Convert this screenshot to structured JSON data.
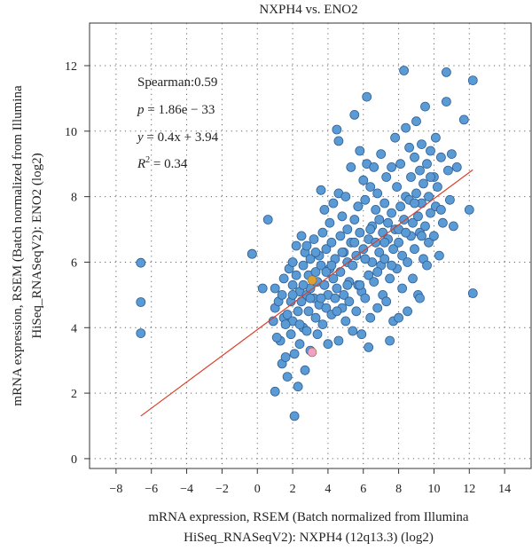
{
  "chart_data": {
    "type": "scatter",
    "title": "NXPH4 vs. ENO2",
    "xlabel_lines": [
      "mRNA expression, RSEM (Batch normalized from Illumina",
      "HiSeq_RNASeqV2): NXPH4 (12q13.3) (log2)"
    ],
    "ylabel_lines": [
      "mRNA expression, RSEM (Batch normalized from Illumina",
      "HiSeq_RNASeqV2): ENO2 (log2)"
    ],
    "xlim": [
      -9.5,
      15.5
    ],
    "ylim": [
      -0.3,
      13.3
    ],
    "xticks": [
      -8,
      -6,
      -4,
      -2,
      0,
      2,
      4,
      6,
      8,
      10,
      12,
      14
    ],
    "yticks": [
      0,
      2,
      4,
      6,
      8,
      10,
      12
    ],
    "grid": true,
    "annotations": {
      "spearman": "Spearman:0.59",
      "p_prefix": "p",
      "p_rest": " = 1.86e − 33",
      "eq_prefix": "y",
      "eq_rest": " = 0.4x + 3.94",
      "r2_prefix": "R",
      "r2_sup": "2",
      "r2_rest": " = 0.34"
    },
    "regression": {
      "slope": 0.4,
      "intercept": 3.94,
      "x_range": [
        -6.6,
        12.2
      ],
      "color": "#d9402a"
    },
    "point_color": "#5b9bd5",
    "point_edge": "#2f5f95",
    "highlights": [
      {
        "x": 3.1,
        "y": 5.45,
        "color": "#e0a030"
      },
      {
        "x": 3.1,
        "y": 3.25,
        "color": "#f0a0c8"
      }
    ],
    "points": [
      [
        -6.6,
        5.98
      ],
      [
        -6.6,
        4.78
      ],
      [
        -6.6,
        3.83
      ],
      [
        -0.3,
        6.25
      ],
      [
        0.3,
        5.2
      ],
      [
        0.6,
        7.3
      ],
      [
        1.0,
        5.2
      ],
      [
        1.0,
        4.6
      ],
      [
        1.0,
        2.05
      ],
      [
        1.2,
        4.8
      ],
      [
        1.3,
        3.6
      ],
      [
        1.4,
        2.9
      ],
      [
        1.4,
        5.0
      ],
      [
        1.5,
        4.3
      ],
      [
        1.5,
        5.5
      ],
      [
        1.6,
        3.1
      ],
      [
        1.7,
        2.5
      ],
      [
        1.7,
        4.4
      ],
      [
        1.8,
        5.8
      ],
      [
        1.9,
        3.8
      ],
      [
        1.9,
        4.8
      ],
      [
        2.0,
        6.0
      ],
      [
        2.0,
        5.3
      ],
      [
        2.0,
        4.2
      ],
      [
        2.1,
        3.2
      ],
      [
        2.1,
        1.3
      ],
      [
        2.2,
        5.6
      ],
      [
        2.2,
        6.5
      ],
      [
        2.3,
        4.5
      ],
      [
        2.3,
        2.2
      ],
      [
        2.4,
        5.1
      ],
      [
        2.4,
        3.5
      ],
      [
        2.5,
        4.8
      ],
      [
        2.5,
        6.8
      ],
      [
        2.6,
        5.9
      ],
      [
        2.6,
        4.0
      ],
      [
        2.7,
        2.7
      ],
      [
        2.7,
        6.3
      ],
      [
        2.8,
        5.0
      ],
      [
        2.8,
        3.9
      ],
      [
        2.9,
        5.6
      ],
      [
        2.9,
        4.5
      ],
      [
        3.0,
        6.1
      ],
      [
        3.0,
        3.3
      ],
      [
        3.0,
        5.2
      ],
      [
        3.2,
        4.9
      ],
      [
        3.2,
        6.7
      ],
      [
        3.3,
        5.7
      ],
      [
        3.3,
        4.3
      ],
      [
        3.4,
        3.8
      ],
      [
        3.4,
        5.4
      ],
      [
        3.5,
        6.2
      ],
      [
        3.5,
        4.7
      ],
      [
        3.6,
        8.2
      ],
      [
        3.6,
        5.9
      ],
      [
        3.7,
        4.1
      ],
      [
        3.7,
        6.9
      ],
      [
        3.8,
        5.3
      ],
      [
        3.8,
        7.6
      ],
      [
        3.9,
        4.6
      ],
      [
        3.9,
        6.4
      ],
      [
        4.0,
        5.0
      ],
      [
        4.0,
        3.5
      ],
      [
        4.1,
        7.2
      ],
      [
        4.1,
        5.8
      ],
      [
        4.2,
        4.4
      ],
      [
        4.2,
        6.6
      ],
      [
        4.3,
        5.5
      ],
      [
        4.3,
        7.8
      ],
      [
        4.4,
        4.9
      ],
      [
        4.4,
        6.1
      ],
      [
        4.5,
        10.05
      ],
      [
        4.5,
        5.2
      ],
      [
        4.6,
        8.1
      ],
      [
        4.6,
        3.6
      ],
      [
        4.7,
        6.8
      ],
      [
        4.7,
        5.7
      ],
      [
        4.8,
        4.6
      ],
      [
        4.8,
        7.4
      ],
      [
        4.9,
        6.3
      ],
      [
        4.9,
        5.0
      ],
      [
        5.0,
        8.0
      ],
      [
        5.0,
        4.2
      ],
      [
        5.1,
        6.0
      ],
      [
        5.1,
        7.0
      ],
      [
        5.2,
        5.4
      ],
      [
        5.2,
        4.8
      ],
      [
        5.3,
        8.9
      ],
      [
        5.3,
        6.6
      ],
      [
        5.4,
        5.9
      ],
      [
        5.4,
        3.9
      ],
      [
        5.5,
        7.3
      ],
      [
        5.5,
        10.5
      ],
      [
        5.6,
        6.2
      ],
      [
        5.6,
        4.5
      ],
      [
        5.7,
        7.7
      ],
      [
        5.7,
        5.3
      ],
      [
        5.8,
        9.4
      ],
      [
        5.8,
        6.9
      ],
      [
        5.9,
        5.1
      ],
      [
        5.9,
        3.8
      ],
      [
        6.0,
        8.5
      ],
      [
        6.0,
        6.4
      ],
      [
        6.1,
        7.9
      ],
      [
        6.1,
        4.9
      ],
      [
        6.2,
        11.05
      ],
      [
        6.2,
        9.0
      ],
      [
        6.3,
        6.7
      ],
      [
        6.3,
        5.6
      ],
      [
        6.4,
        8.3
      ],
      [
        6.4,
        4.3
      ],
      [
        6.5,
        7.1
      ],
      [
        6.5,
        6.0
      ],
      [
        6.6,
        8.9
      ],
      [
        6.6,
        5.4
      ],
      [
        6.7,
        7.6
      ],
      [
        6.7,
        6.6
      ],
      [
        6.8,
        4.6
      ],
      [
        6.8,
        8.1
      ],
      [
        6.9,
        6.3
      ],
      [
        6.9,
        7.3
      ],
      [
        7.0,
        5.9
      ],
      [
        7.0,
        9.3
      ],
      [
        7.1,
        6.9
      ],
      [
        7.1,
        5.0
      ],
      [
        7.2,
        7.8
      ],
      [
        7.2,
        6.1
      ],
      [
        7.3,
        8.6
      ],
      [
        7.3,
        4.8
      ],
      [
        7.4,
        6.7
      ],
      [
        7.4,
        7.2
      ],
      [
        7.5,
        5.5
      ],
      [
        7.5,
        3.6
      ],
      [
        7.6,
        8.9
      ],
      [
        7.6,
        7.5
      ],
      [
        7.7,
        6.4
      ],
      [
        7.7,
        4.2
      ],
      [
        7.8,
        9.8
      ],
      [
        7.8,
        7.0
      ],
      [
        7.9,
        5.8
      ],
      [
        7.9,
        8.3
      ],
      [
        8.0,
        6.6
      ],
      [
        8.0,
        4.3
      ],
      [
        8.1,
        7.7
      ],
      [
        8.1,
        9.0
      ],
      [
        8.2,
        6.2
      ],
      [
        8.2,
        5.2
      ],
      [
        8.3,
        11.85
      ],
      [
        8.3,
        7.3
      ],
      [
        8.4,
        8.0
      ],
      [
        8.4,
        10.1
      ],
      [
        8.5,
        6.0
      ],
      [
        8.5,
        4.5
      ],
      [
        8.6,
        9.5
      ],
      [
        8.6,
        7.9
      ],
      [
        8.7,
        6.8
      ],
      [
        8.7,
        8.6
      ],
      [
        8.8,
        5.5
      ],
      [
        8.8,
        7.2
      ],
      [
        8.9,
        9.2
      ],
      [
        8.9,
        6.4
      ],
      [
        9.0,
        10.3
      ],
      [
        9.0,
        8.1
      ],
      [
        9.1,
        7.4
      ],
      [
        9.1,
        5.0
      ],
      [
        9.2,
        8.8
      ],
      [
        9.2,
        6.9
      ],
      [
        9.3,
        9.6
      ],
      [
        9.3,
        7.8
      ],
      [
        9.4,
        6.1
      ],
      [
        9.4,
        8.4
      ],
      [
        9.5,
        10.75
      ],
      [
        9.5,
        7.1
      ],
      [
        9.6,
        5.9
      ],
      [
        9.6,
        9.0
      ],
      [
        9.7,
        8.0
      ],
      [
        9.7,
        6.6
      ],
      [
        9.8,
        9.4
      ],
      [
        9.8,
        7.5
      ],
      [
        10.0,
        8.6
      ],
      [
        10.0,
        6.8
      ],
      [
        10.1,
        9.8
      ],
      [
        10.1,
        7.7
      ],
      [
        10.2,
        8.3
      ],
      [
        10.3,
        6.2
      ],
      [
        10.4,
        9.2
      ],
      [
        10.5,
        7.2
      ],
      [
        10.7,
        11.8
      ],
      [
        10.7,
        10.9
      ],
      [
        10.8,
        8.8
      ],
      [
        10.9,
        7.9
      ],
      [
        11.0,
        9.3
      ],
      [
        11.1,
        7.1
      ],
      [
        11.3,
        8.9
      ],
      [
        11.7,
        10.35
      ],
      [
        12.0,
        7.6
      ],
      [
        12.2,
        11.55
      ],
      [
        12.2,
        5.05
      ],
      [
        -0.3,
        6.25
      ],
      [
        0.9,
        4.2
      ],
      [
        1.1,
        3.7
      ],
      [
        1.6,
        4.1
      ],
      [
        2.0,
        5.0
      ],
      [
        2.4,
        4.1
      ],
      [
        2.6,
        5.3
      ],
      [
        2.8,
        6.5
      ],
      [
        3.0,
        4.9
      ],
      [
        3.3,
        6.3
      ],
      [
        3.6,
        4.9
      ],
      [
        3.9,
        5.7
      ],
      [
        4.2,
        5.9
      ],
      [
        4.5,
        4.5
      ],
      [
        4.8,
        6.3
      ],
      [
        5.1,
        5.3
      ],
      [
        5.5,
        6.6
      ],
      [
        5.8,
        5.3
      ],
      [
        6.1,
        6.1
      ],
      [
        6.4,
        7.0
      ],
      [
        6.8,
        5.7
      ],
      [
        7.2,
        6.6
      ],
      [
        7.6,
        5.9
      ],
      [
        8.0,
        7.0
      ],
      [
        8.4,
        6.9
      ],
      [
        8.9,
        7.8
      ],
      [
        9.3,
        6.8
      ],
      [
        9.8,
        8.6
      ],
      [
        10.4,
        7.6
      ],
      [
        6.3,
        3.4
      ],
      [
        4.6,
        9.7
      ],
      [
        9.2,
        4.9
      ]
    ]
  }
}
